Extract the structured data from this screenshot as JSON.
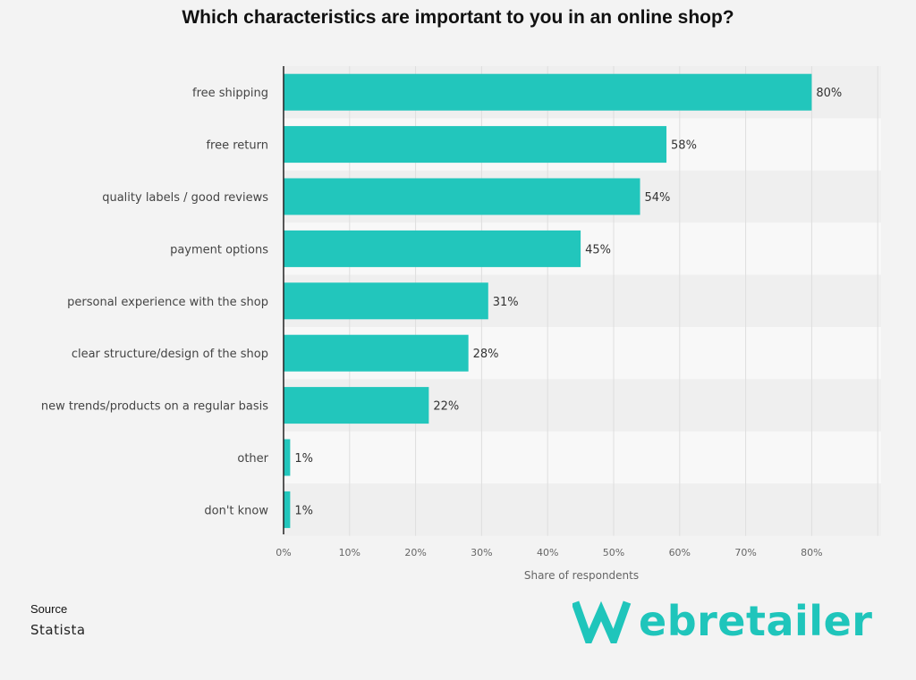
{
  "title": "Which characteristics are important to you in an online shop?",
  "source": {
    "heading": "Source",
    "value": "Statista"
  },
  "logo": {
    "text": "ebretailer",
    "icon": "W-logo-icon"
  },
  "colors": {
    "bar": "#22c6bc",
    "background": "#f3f3f3",
    "band_light": "#f8f8f8",
    "band_dark": "#efefef",
    "logo": "#1fc5bb"
  },
  "chart_data": {
    "type": "bar",
    "orientation": "horizontal",
    "categories": [
      "free shipping",
      "free return",
      "quality labels / good reviews",
      "payment options",
      "personal experience with the shop",
      "clear structure/design of the shop",
      "new trends/products on a regular basis",
      "other",
      "don't know"
    ],
    "values": [
      80,
      58,
      54,
      45,
      31,
      28,
      22,
      1,
      1
    ],
    "value_labels": [
      "80%",
      "58%",
      "54%",
      "45%",
      "31%",
      "28%",
      "22%",
      "1%",
      "1%"
    ],
    "xticks": [
      "0%",
      "10%",
      "20%",
      "30%",
      "40%",
      "50%",
      "60%",
      "70%",
      "80%"
    ],
    "xlim": [
      0,
      90
    ],
    "xlabel": "Share of respondents",
    "ylabel": "",
    "grid": true,
    "legend": "none"
  }
}
